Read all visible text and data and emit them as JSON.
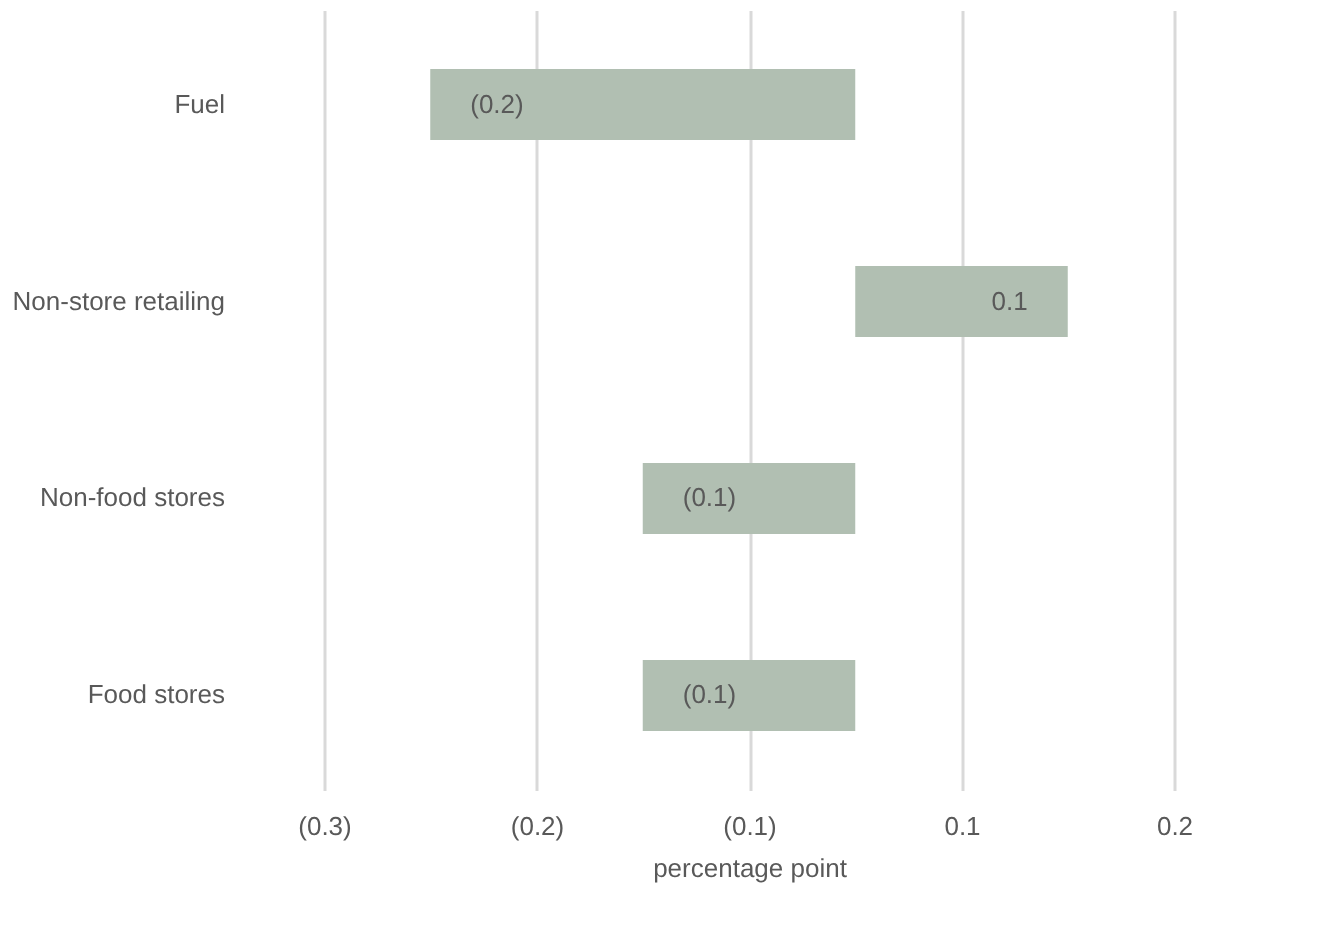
{
  "chart_data": {
    "type": "bar",
    "orientation": "horizontal",
    "xlabel": "percentage point",
    "categories": [
      "Fuel",
      "Non-store retailing",
      "Non-food stores",
      "Food stores"
    ],
    "values": [
      -0.2,
      0.1,
      -0.1,
      -0.1
    ],
    "value_labels": [
      "(0.2)",
      "0.1",
      "(0.1)",
      "(0.1)"
    ],
    "color": "#b1bfb2",
    "xlim": [
      -0.25,
      0.15
    ],
    "xticks": [
      {
        "value": -0.25,
        "label": "(0.3)"
      },
      {
        "value": -0.15,
        "label": "(0.2)"
      },
      {
        "value": -0.05,
        "label": "(0.1)"
      },
      {
        "value": 0.05,
        "label": "0.1"
      },
      {
        "value": 0.15,
        "label": "0.2"
      }
    ],
    "grid": "x"
  }
}
